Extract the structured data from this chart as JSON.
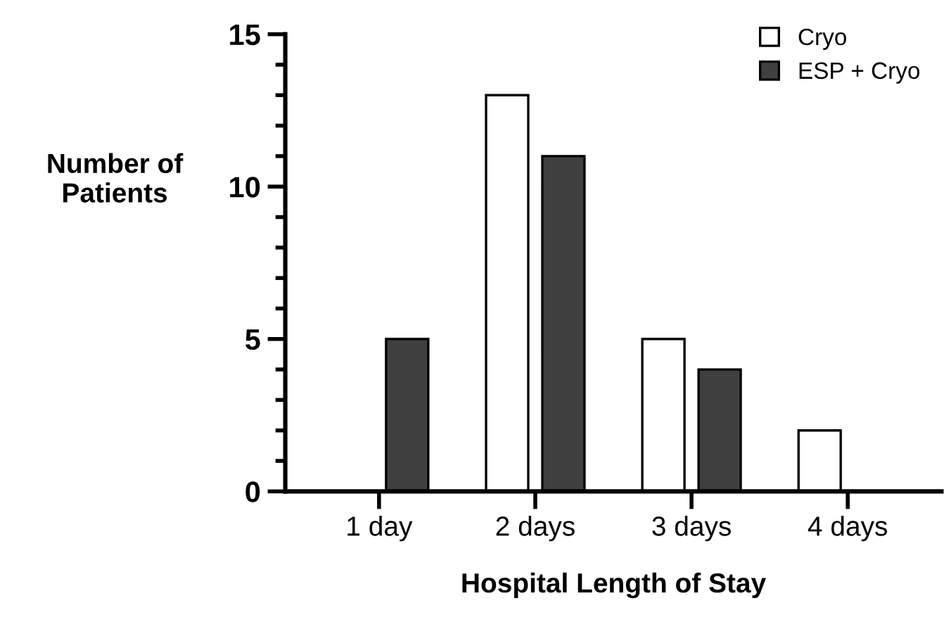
{
  "chart_data": {
    "type": "bar",
    "xlabel": "Hospital Length of Stay",
    "ylabel": "Number of\nPatients",
    "categories": [
      "1 day",
      "2 days",
      "3 days",
      "4 days"
    ],
    "series": [
      {
        "name": "Cryo",
        "color": "#ffffff",
        "values": [
          0,
          13,
          5,
          2
        ]
      },
      {
        "name": "ESP + Cryo",
        "color": "#404040",
        "values": [
          5,
          11,
          4,
          0
        ]
      }
    ],
    "ylim": [
      0,
      15
    ],
    "yticks": [
      0,
      {
        "value": 1,
        "label": null
      },
      {
        "value": 2,
        "label": null
      },
      {
        "value": 3,
        "label": null
      },
      {
        "value": 4,
        "label": null
      },
      5,
      {
        "value": 6,
        "label": null
      },
      {
        "value": 7,
        "label": null
      },
      {
        "value": 8,
        "label": null
      },
      {
        "value": 9,
        "label": null
      },
      10,
      {
        "value": 11,
        "label": null
      },
      {
        "value": 12,
        "label": null
      },
      {
        "value": 13,
        "label": null
      },
      {
        "value": 14,
        "label": null
      },
      15
    ],
    "grid": false,
    "legend": "top right"
  }
}
